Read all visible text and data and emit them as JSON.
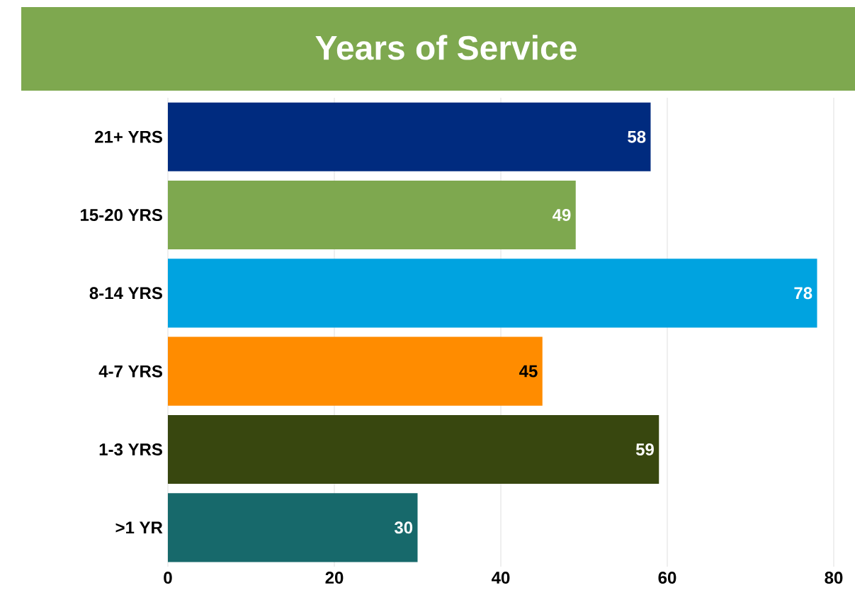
{
  "chart_data": {
    "type": "bar",
    "orientation": "horizontal",
    "title": "Years of Service",
    "categories": [
      "21+ YRS",
      "15-20 YRS",
      "8-14 YRS",
      "4-7 YRS",
      "1-3 YRS",
      ">1 YR"
    ],
    "values": [
      58,
      49,
      78,
      45,
      59,
      30
    ],
    "colors": [
      "#002b7f",
      "#7ea84f",
      "#00a3e0",
      "#ff8c00",
      "#38470f",
      "#17696b"
    ],
    "xlim": [
      0,
      80
    ],
    "xticks": [
      0,
      20,
      40,
      60,
      80
    ],
    "grid": "x",
    "data_labels": true
  }
}
